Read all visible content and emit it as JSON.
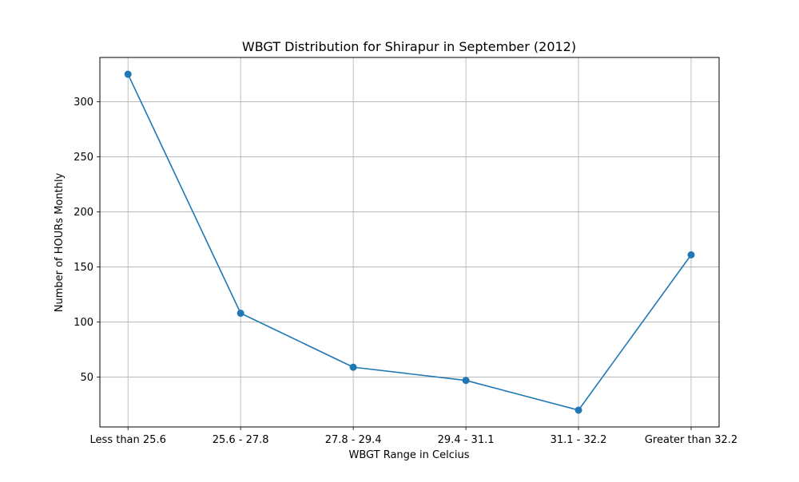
{
  "chart_data": {
    "type": "line",
    "title": "WBGT Distribution for Shirapur in September (2012)",
    "xlabel": "WBGT Range in Celcius",
    "ylabel": "Number of HOURs Monthly",
    "categories": [
      "Less than 25.6",
      "25.6 - 27.8",
      "27.8 - 29.4",
      "29.4 - 31.1",
      "31.1 - 32.2",
      "Greater than 32.2"
    ],
    "series": [
      {
        "values": [
          325,
          108,
          59,
          47,
          20,
          161
        ],
        "color": "#1f77b4",
        "marker": "circle"
      }
    ],
    "ylim": [
      4.75,
      340.25
    ],
    "yticks": [
      50,
      100,
      150,
      200,
      250,
      300
    ],
    "grid": true,
    "legend": "none"
  }
}
